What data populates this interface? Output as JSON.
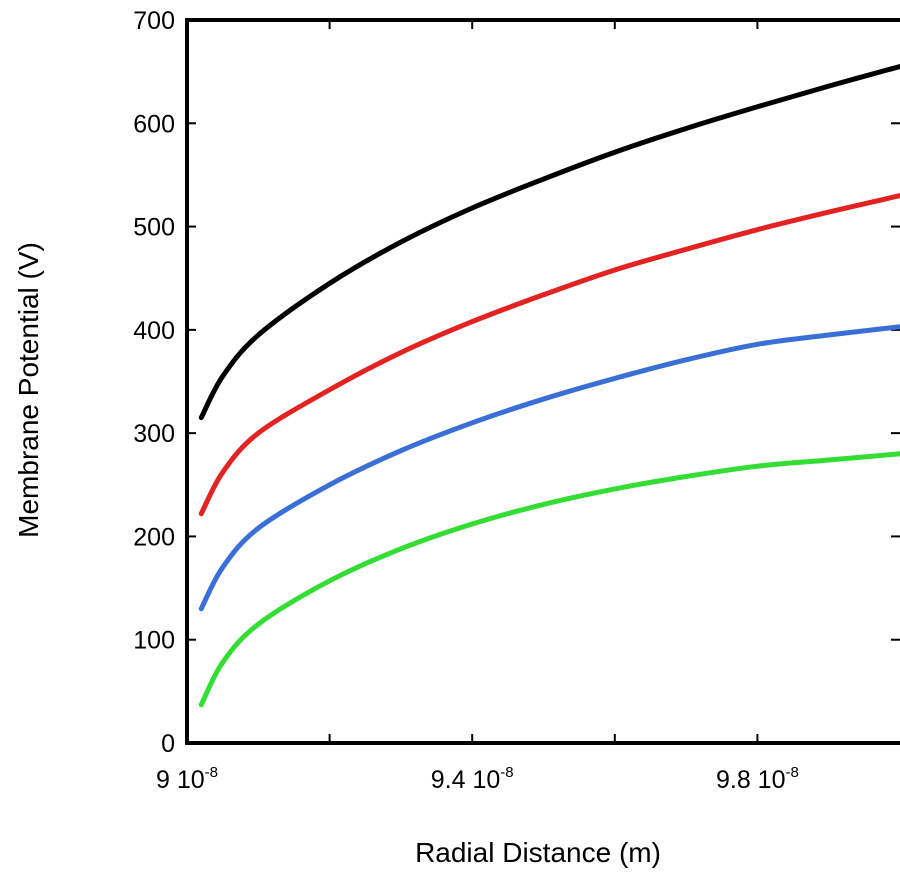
{
  "chart_data": {
    "type": "line",
    "title": "",
    "xlabel": "Radial Distance  (m)",
    "ylabel": "Membrane Potential  (V)",
    "xlim": [
      9e-08,
      1e-07
    ],
    "ylim": [
      0,
      700
    ],
    "x_ticks": [
      {
        "value": 9e-08,
        "mantissa": "9",
        "exp": "-8"
      },
      {
        "value": 9.4e-08,
        "mantissa": "9.4",
        "exp": "-8"
      },
      {
        "value": 9.8e-08,
        "mantissa": "9.8",
        "exp": "-8"
      }
    ],
    "y_ticks": [
      0,
      100,
      200,
      300,
      400,
      500,
      600,
      700
    ],
    "grid": false,
    "series": [
      {
        "color": "#000000",
        "x": [
          9.02e-08,
          9.05e-08,
          9.1e-08,
          9.2e-08,
          9.3e-08,
          9.4e-08,
          9.5e-08,
          9.6e-08,
          9.7e-08,
          9.8e-08,
          9.9e-08,
          1e-07
        ],
        "y": [
          315,
          355,
          395,
          445,
          485,
          518,
          546,
          572,
          595,
          616,
          636,
          655
        ]
      },
      {
        "color": "#e32222",
        "x": [
          9.02e-08,
          9.05e-08,
          9.1e-08,
          9.2e-08,
          9.3e-08,
          9.4e-08,
          9.5e-08,
          9.6e-08,
          9.7e-08,
          9.8e-08,
          9.9e-08,
          1e-07
        ],
        "y": [
          222,
          262,
          300,
          342,
          378,
          408,
          434,
          458,
          478,
          497,
          514,
          530
        ]
      },
      {
        "color": "#3a6fd8",
        "x": [
          9.02e-08,
          9.05e-08,
          9.1e-08,
          9.2e-08,
          9.3e-08,
          9.4e-08,
          9.5e-08,
          9.6e-08,
          9.7e-08,
          9.8e-08,
          9.9e-08,
          1e-07
        ],
        "y": [
          130,
          170,
          208,
          250,
          283,
          310,
          333,
          353,
          371,
          386,
          395,
          403
        ]
      },
      {
        "color": "#33dd33",
        "x": [
          9.02e-08,
          9.05e-08,
          9.1e-08,
          9.2e-08,
          9.3e-08,
          9.4e-08,
          9.5e-08,
          9.6e-08,
          9.7e-08,
          9.8e-08,
          9.9e-08,
          1e-07
        ],
        "y": [
          37,
          78,
          115,
          157,
          188,
          212,
          231,
          246,
          258,
          268,
          274,
          280
        ]
      }
    ]
  }
}
